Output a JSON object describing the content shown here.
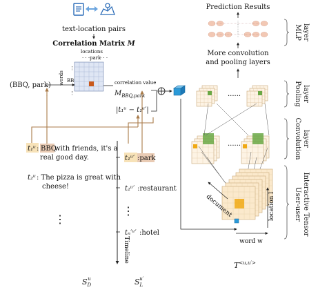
{
  "top": {
    "pairs_label": "text-location pairs",
    "matrix_title": "Correlation Matrix M",
    "matrix_title_main": "Correlation Matrix",
    "matrix_title_var": "M"
  },
  "matrix": {
    "axis_locations": "locations",
    "axis_words": "words",
    "col_park": "park",
    "row_bbq": "BBQ",
    "dots_h1": "· · ·",
    "dots_h2": "· · ·",
    "dots_v": "⋮",
    "pair": "(BBQ, park)",
    "corr_label": "correlation value",
    "corr_symbol": "M",
    "corr_sub": "BBQ,park",
    "time_diff": "|t₁ᵘ − t₁ᵘ′|",
    "oplus": "⊕"
  },
  "left": {
    "t1": "t₁ᵘ",
    "t1_text_a": ": ",
    "t1_bbq": "BBQ",
    "t1_text_b": " with friends, it's a",
    "t1_text_c": "real good day.",
    "t2": "t₂ᵘ",
    "t2_text_a": ":  The pizza is great with",
    "t2_text_b": "cheese!",
    "vdots": "⋮",
    "sd": "S",
    "sd_sub": "D",
    "sd_sup": "u"
  },
  "timeline": {
    "t1": "t₁ᵘ′",
    "loc1": ":park",
    "t2": "t₂ᵘ′",
    "loc2": ":restaurant",
    "vdots": "⋮",
    "tn": "tₙ′ᵘ′",
    "locn": ":hotel",
    "label": "Timeline",
    "sl": "S",
    "sl_sub": "L",
    "sl_sup": "u′"
  },
  "right": {
    "prediction": "Prediction Results",
    "more_conv_a": "More convolution",
    "more_conv_b": "and pooling layers",
    "dots_pool": "······",
    "dots_conv": "······",
    "mlp_label": "MLP layer",
    "mlp_a": "MLP",
    "mlp_b": "layer",
    "pool_a": "Pooling",
    "pool_b": "layer",
    "conv_a": "Convolution",
    "conv_b": "layer",
    "tensor_a": "User-user",
    "tensor_b": "Interactive Tensor",
    "document": "document",
    "location": "location l",
    "word": "word w",
    "tensor_symbol": "T",
    "tensor_sup": "<u,u′>"
  },
  "colors": {
    "brown_line": "#a87a48",
    "highlight_bbq": "#e9cbb4",
    "highlight_t": "#f7e2b8",
    "matrix_fill": "#dfe6f4",
    "matrix_cell": "#c9591c",
    "blue_cube": "#2b9ad8",
    "green": "#6aa845",
    "orange": "#f0a914",
    "tensor_fill": "#fbe9cc",
    "mlp_node": "#f2c8b4"
  }
}
